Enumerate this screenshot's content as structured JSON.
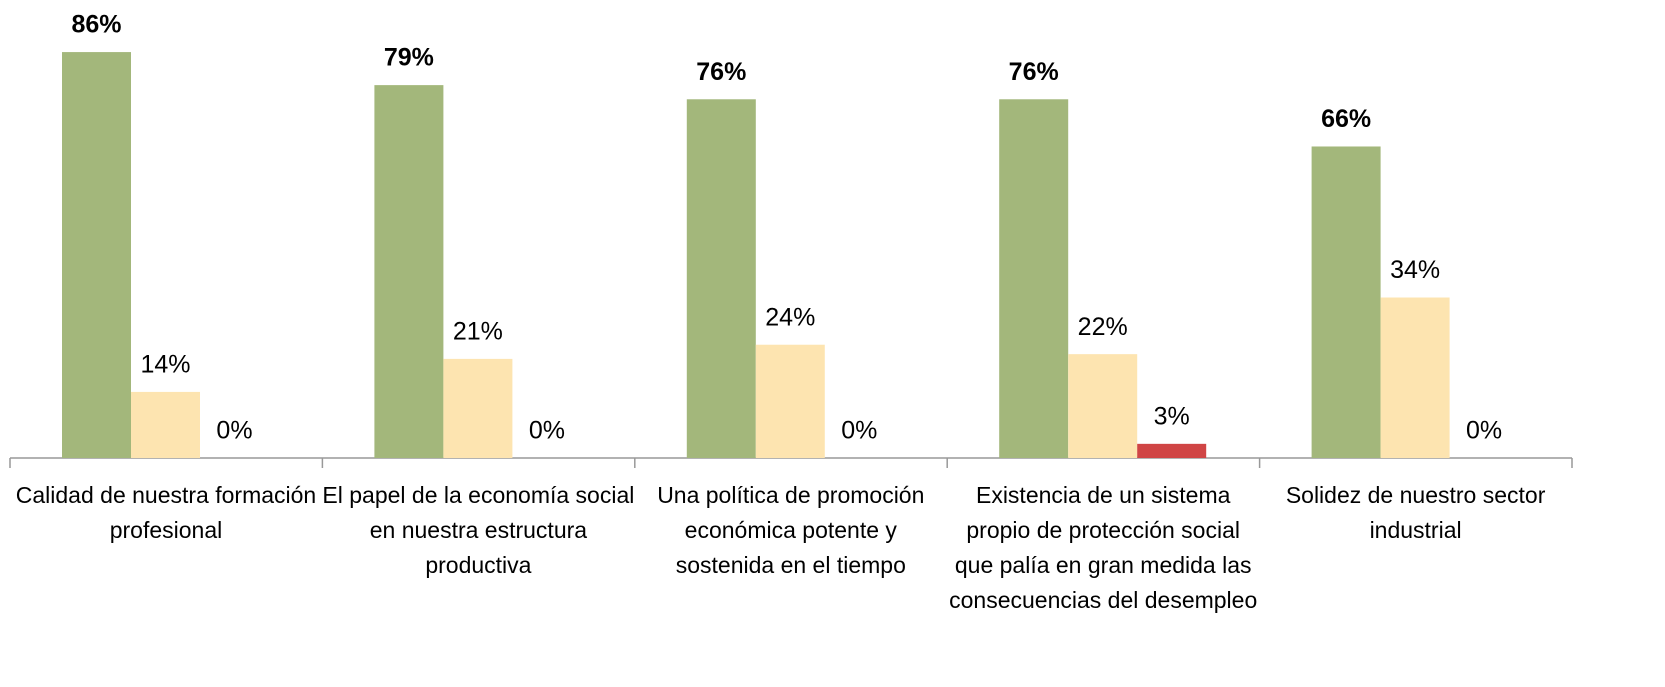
{
  "chart_data": {
    "type": "bar",
    "categories": [
      "Calidad de nuestra formación profesional",
      "El papel de la economía social en nuestra estructura productiva",
      "Una política de promoción económica potente y sostenida en el tiempo",
      "Existencia de un sistema propio de protección social que palía en gran medida las consecuencias del desempleo",
      "Solidez de nuestro sector industrial"
    ],
    "series": [
      {
        "color": "#a3b77b",
        "values": [
          86,
          79,
          76,
          76,
          66
        ],
        "value_labels": [
          "86%",
          "79%",
          "76%",
          "76%",
          "66%"
        ]
      },
      {
        "color": "#fde4b0",
        "values": [
          14,
          21,
          24,
          22,
          34
        ],
        "value_labels": [
          "14%",
          "21%",
          "24%",
          "22%",
          "34%"
        ]
      },
      {
        "color": "#d04545",
        "values": [
          0,
          0,
          0,
          3,
          0
        ],
        "value_labels": [
          "0%",
          "0%",
          "0%",
          "3%",
          "0%"
        ]
      }
    ]
  }
}
